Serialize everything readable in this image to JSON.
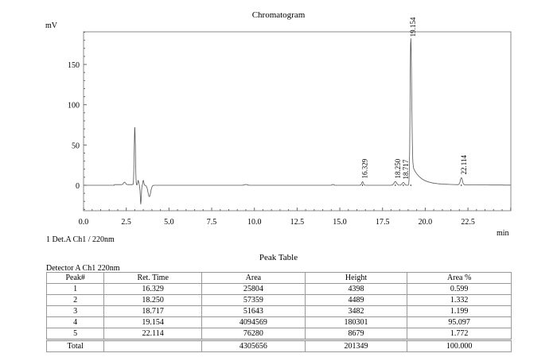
{
  "chart_data": {
    "type": "line",
    "title": "Chromatogram",
    "xlabel": "min",
    "ylabel": "mV",
    "xlim": [
      0,
      25
    ],
    "ylim": [
      -32,
      190
    ],
    "xticks": [
      "0.0",
      "2.5",
      "5.0",
      "7.5",
      "10.0",
      "12.5",
      "15.0",
      "17.5",
      "20.0",
      "22.5"
    ],
    "yticks": [
      "0",
      "50",
      "100",
      "150"
    ],
    "series_label": "1 Det.A Ch1 / 220nm",
    "features": [
      {
        "t": 2.4,
        "h": 3,
        "w": 0.06
      },
      {
        "t": 3.0,
        "h": 72,
        "w": 0.035
      },
      {
        "t": 3.2,
        "h": 6,
        "w": 0.03
      },
      {
        "t": 3.35,
        "h": -23,
        "w": 0.03
      },
      {
        "t": 3.5,
        "h": 6,
        "w": 0.03
      },
      {
        "t": 3.85,
        "h": -14,
        "w": 0.08
      },
      {
        "t": 9.5,
        "h": 1,
        "w": 0.08
      },
      {
        "t": 14.6,
        "h": 1,
        "w": 0.05
      }
    ],
    "peaks": [
      {
        "label": "16.329",
        "t": 16.329,
        "h": 4.4,
        "w": 0.05,
        "tail": 0
      },
      {
        "label": "18.250",
        "t": 18.25,
        "h": 4.5,
        "w": 0.08,
        "tail": 0
      },
      {
        "label": "18.717",
        "t": 18.717,
        "h": 3.5,
        "w": 0.07,
        "tail": 0
      },
      {
        "label": "19.154",
        "t": 19.154,
        "h": 180.3,
        "w": 0.04,
        "tail": 0.45
      },
      {
        "label": "22.114",
        "t": 22.114,
        "h": 8.7,
        "w": 0.06,
        "tail": 0
      }
    ]
  },
  "peak_table": {
    "title": "Peak Table",
    "detector": "Detector A Ch1 220nm",
    "headers": [
      "Peak#",
      "Ret. Time",
      "Area",
      "Height",
      "Area %"
    ],
    "rows": [
      [
        "1",
        "16.329",
        "25804",
        "4398",
        "0.599"
      ],
      [
        "2",
        "18.250",
        "57359",
        "4489",
        "1.332"
      ],
      [
        "3",
        "18.717",
        "51643",
        "3482",
        "1.199"
      ],
      [
        "4",
        "19.154",
        "4094569",
        "180301",
        "95.097"
      ],
      [
        "5",
        "22.114",
        "76280",
        "8679",
        "1.772"
      ]
    ],
    "total": [
      "Total",
      "",
      "4305656",
      "201349",
      "100.000"
    ]
  }
}
